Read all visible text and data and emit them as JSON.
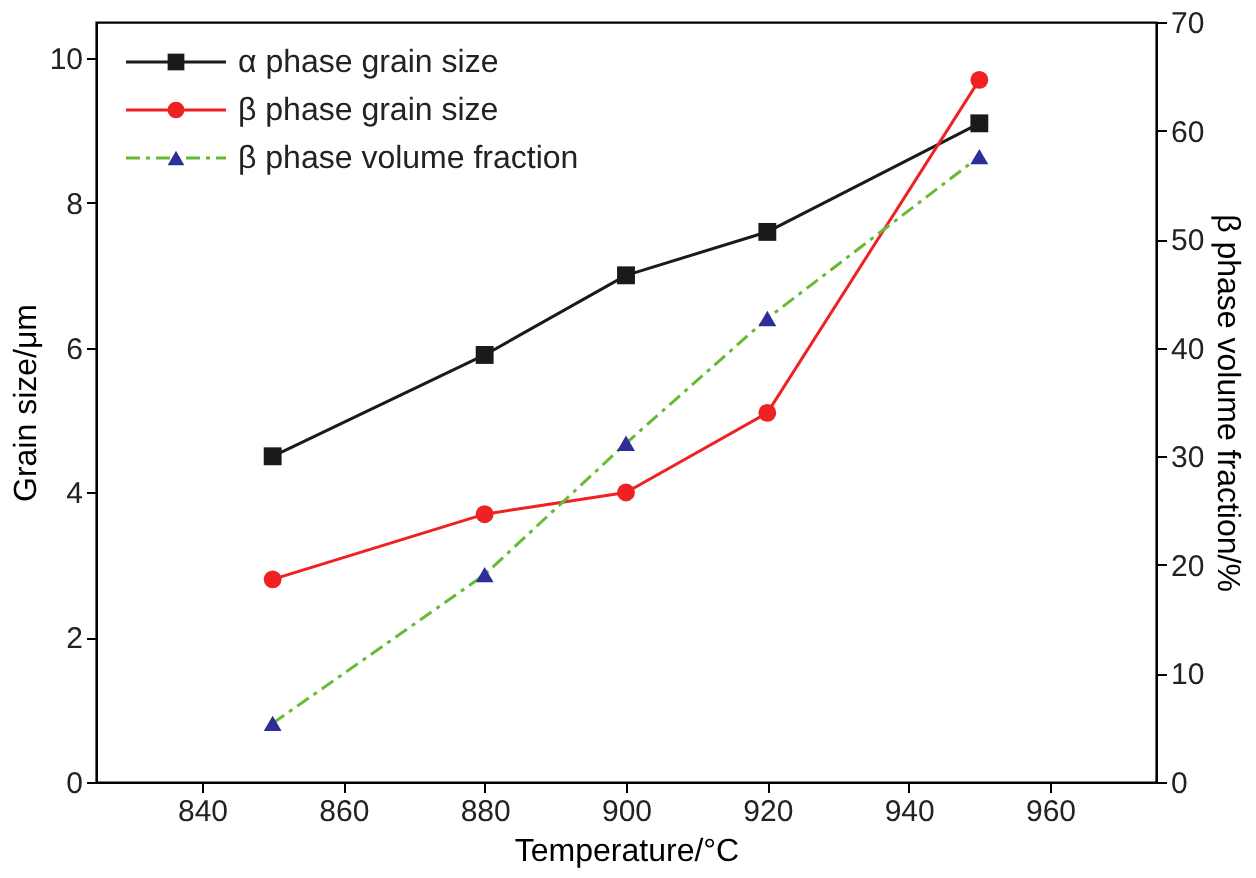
{
  "chart_data": {
    "type": "line",
    "xlabel": "Temperature/°C",
    "ylabel": "Grain size/μm",
    "y2label": "β phase volume fraction/%",
    "x": [
      850,
      880,
      900,
      920,
      950
    ],
    "xlim": [
      825,
      975
    ],
    "xticks": [
      840,
      860,
      880,
      900,
      920,
      940,
      960
    ],
    "ylim": [
      0,
      10.5
    ],
    "yticks": [
      0,
      2,
      4,
      6,
      8,
      10
    ],
    "y2lim": [
      0,
      70
    ],
    "y2ticks": [
      0,
      10,
      20,
      30,
      40,
      50,
      60,
      70
    ],
    "grid": false,
    "legend": "top left",
    "series": [
      {
        "name": "α phase grain size",
        "color": "#1a1a1a",
        "marker": "square",
        "line_style": "solid",
        "values": [
          4.5,
          5.9,
          7.0,
          7.6,
          9.1
        ]
      },
      {
        "name": "β phase grain size",
        "color": "#ee2222",
        "marker": "circle",
        "line_style": "solid",
        "values": [
          2.8,
          3.7,
          4.0,
          5.1,
          9.7
        ]
      },
      {
        "name": "β phase volume fraction",
        "color": "#66bb33",
        "colors": [
          "#2e2e9a",
          "#2e2e9a",
          "#2e2e9a",
          "#2e2e9a",
          "#2e2e9a"
        ],
        "marker": "triangle",
        "line_style": "dashed",
        "axis": "y2",
        "values": [
          5.4,
          19.1,
          31.2,
          42.7,
          57.6
        ]
      }
    ]
  }
}
